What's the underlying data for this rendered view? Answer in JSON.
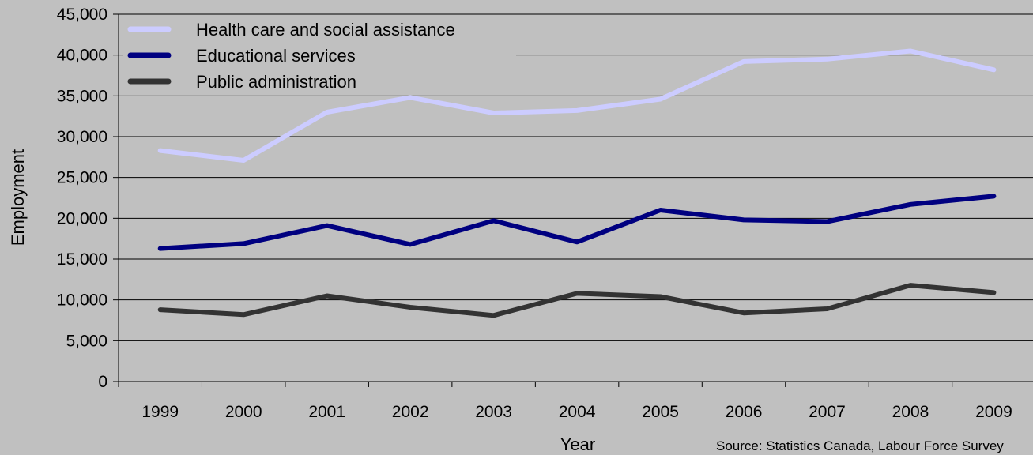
{
  "chart_data": {
    "type": "line",
    "xlabel": "Year",
    "ylabel": "Employment",
    "ylim": [
      0,
      45000
    ],
    "y_ticks": [
      0,
      5000,
      10000,
      15000,
      20000,
      25000,
      30000,
      35000,
      40000,
      45000
    ],
    "y_tick_labels": [
      "0",
      "5,000",
      "10,000",
      "15,000",
      "20,000",
      "25,000",
      "30,000",
      "35,000",
      "40,000",
      "45,000"
    ],
    "x": [
      "1999",
      "2000",
      "2001",
      "2002",
      "2003",
      "2004",
      "2005",
      "2006",
      "2007",
      "2008",
      "2009"
    ],
    "grid": true,
    "legend_position": "top-left",
    "series": [
      {
        "name": "Health care and social assistance",
        "color": "#ccccff",
        "values": [
          28300,
          27100,
          33000,
          34800,
          32900,
          33200,
          34600,
          39200,
          39500,
          40500,
          38200
        ]
      },
      {
        "name": "Educational services",
        "color": "#000080",
        "values": [
          16300,
          16900,
          19100,
          16800,
          19700,
          17100,
          21000,
          19800,
          19600,
          21700,
          22700
        ]
      },
      {
        "name": "Public administration",
        "color": "#333333",
        "values": [
          8800,
          8200,
          10500,
          9100,
          8100,
          10800,
          10400,
          8400,
          8900,
          11800,
          10900
        ]
      }
    ],
    "source": "Source: Statistics Canada, Labour Force Survey"
  }
}
